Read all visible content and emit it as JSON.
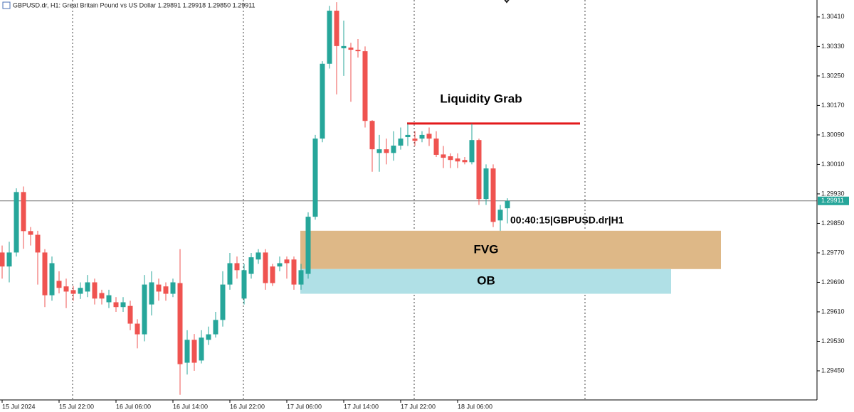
{
  "chart_data": {
    "type": "candlestick",
    "header": "GBPUSD.dr, H1:  Great Britain Pound vs US Dollar  1.29891 1.29918 1.29850 1.29911",
    "categories": [
      "15 Jul 2024",
      null,
      null,
      null,
      null,
      null,
      null,
      null,
      "15 Jul 22:00",
      null,
      null,
      null,
      null,
      null,
      null,
      null,
      "16 Jul 06:00",
      null,
      null,
      null,
      null,
      null,
      null,
      null,
      "16 Jul 14:00",
      null,
      null,
      null,
      null,
      null,
      null,
      null,
      "16 Jul 22:00",
      null,
      null,
      null,
      null,
      null,
      null,
      null,
      "17 Jul 06:00",
      null,
      null,
      null,
      null,
      null,
      null,
      null,
      "17 Jul 14:00",
      null,
      null,
      null,
      null,
      null,
      null,
      null,
      "17 Jul 22:00",
      null,
      null,
      null,
      null,
      null,
      null,
      null,
      "18 Jul 06:00",
      null,
      null,
      null,
      null,
      null,
      null,
      null
    ],
    "open": [
      1.29771,
      1.29733,
      1.29771,
      1.29935,
      1.29829,
      1.29819,
      1.29771,
      1.29655,
      1.29694,
      1.29679,
      1.29669,
      1.29659,
      1.29665,
      1.2969,
      1.29661,
      1.29636,
      1.29636,
      1.29623,
      1.29626,
      1.29578,
      1.29549,
      1.2963,
      1.29684,
      1.29679,
      1.29659,
      1.29688,
      1.29472,
      1.29534,
      1.29478,
      1.29534,
      1.29549,
      1.29588,
      1.29684,
      1.29742,
      1.29646,
      1.29713,
      1.29752,
      1.29771,
      1.29733,
      1.29733,
      1.29752,
      1.29752,
      1.29684,
      1.29713,
      1.29868,
      1.3008,
      1.30283,
      1.30427,
      1.30325,
      1.30327,
      1.30321,
      1.30317,
      1.30128,
      1.30041,
      1.30051,
      1.30041,
      1.30061,
      1.30084,
      1.3008,
      1.3008,
      1.30093,
      1.3008,
      1.30037,
      1.30032,
      1.30026,
      1.30022,
      1.30016,
      1.30076,
      1.29916,
      1.29999,
      1.29858,
      1.29891
    ],
    "high": [
      1.2979,
      1.298,
      1.29945,
      1.2995,
      1.2984,
      1.2983,
      1.2978,
      1.2976,
      1.2972,
      1.297,
      1.2968,
      1.2969,
      1.2971,
      1.297,
      1.2967,
      1.2967,
      1.2965,
      1.2965,
      1.2964,
      1.2959,
      1.2971,
      1.2972,
      1.297,
      1.2969,
      1.297,
      1.2978,
      1.2956,
      1.2955,
      1.2956,
      1.2957,
      1.2961,
      1.2972,
      1.2977,
      1.2976,
      1.2974,
      1.2977,
      1.2978,
      1.2978,
      1.2974,
      1.2976,
      1.2976,
      1.2976,
      1.2974,
      1.2988,
      1.3009,
      1.3029,
      1.3044,
      1.3045,
      1.304,
      1.3034,
      1.3035,
      1.3033,
      1.3013,
      1.3009,
      1.3008,
      1.301,
      1.3011,
      1.3012,
      1.301,
      1.301,
      1.3011,
      1.301,
      1.3006,
      1.3004,
      1.3004,
      1.3003,
      1.3012,
      1.3008,
      1.3001,
      1.3001,
      1.299,
      1.29918
    ],
    "low": [
      1.297,
      1.2969,
      1.2976,
      1.29781,
      1.2979,
      1.29684,
      1.29623,
      1.2964,
      1.2966,
      1.2962,
      1.2964,
      1.29645,
      1.2965,
      1.2963,
      1.2963,
      1.2962,
      1.2961,
      1.2961,
      1.2956,
      1.29511,
      1.2953,
      1.296,
      1.2964,
      1.2964,
      1.2965,
      1.29385,
      1.2944,
      1.2945,
      1.2947,
      1.2952,
      1.2954,
      1.2957,
      1.2967,
      1.297,
      1.2963,
      1.297,
      1.2974,
      1.2967,
      1.2968,
      1.2972,
      1.297,
      1.2967,
      1.2967,
      1.297,
      1.2986,
      1.3007,
      1.3027,
      1.302,
      1.3025,
      1.3018,
      1.303,
      1.3011,
      1.2999,
      1.2999,
      1.3001,
      1.3002,
      1.3005,
      1.3006,
      1.3006,
      1.3007,
      1.3006,
      1.3003,
      1.3,
      1.3,
      1.3,
      1.3001,
      1.3001,
      1.299,
      1.299,
      1.2984,
      1.2983,
      1.2985
    ],
    "close": [
      1.29733,
      1.29771,
      1.29935,
      1.29829,
      1.29819,
      1.29771,
      1.29655,
      1.29742,
      1.29675,
      1.29665,
      1.29659,
      1.29675,
      1.2969,
      1.29646,
      1.29646,
      1.29655,
      1.29623,
      1.29636,
      1.29578,
      1.29549,
      1.29684,
      1.2969,
      1.29665,
      1.29659,
      1.2969,
      1.29468,
      1.29534,
      1.29472,
      1.2954,
      1.29549,
      1.29588,
      1.29684,
      1.29742,
      1.29723,
      1.29723,
      1.29758,
      1.29771,
      1.29688,
      1.29688,
      1.29742,
      1.29742,
      1.29684,
      1.29723,
      1.29868,
      1.3008,
      1.30283,
      1.30427,
      1.30331,
      1.30331,
      1.30321,
      1.30317,
      1.30128,
      1.30051,
      1.30051,
      1.30041,
      1.30061,
      1.3008,
      1.3009,
      1.30074,
      1.3009,
      1.3008,
      1.30036,
      1.30028,
      1.30022,
      1.30018,
      1.30016,
      1.30076,
      1.29916,
      1.29999,
      1.29854,
      1.29887,
      1.29911
    ],
    "up_color": "#26a69a",
    "down_color": "#ef5350",
    "ylim": [
      1.29371,
      1.30456
    ],
    "yticks": [
      {
        "value": 1.3041,
        "label": "1.30410"
      },
      {
        "value": 1.3033,
        "label": "1.30330"
      },
      {
        "value": 1.3025,
        "label": "1.30250"
      },
      {
        "value": 1.3017,
        "label": "1.30170"
      },
      {
        "value": 1.3009,
        "label": "1.30090"
      },
      {
        "value": 1.3001,
        "label": "1.30010"
      },
      {
        "value": 1.2993,
        "label": "1.29930"
      },
      {
        "value": 1.2985,
        "label": "1.29850"
      },
      {
        "value": 1.2977,
        "label": "1.29770"
      },
      {
        "value": 1.2969,
        "label": "1.29690"
      },
      {
        "value": 1.2961,
        "label": "1.29610"
      },
      {
        "value": 1.2953,
        "label": "1.29530"
      },
      {
        "value": 1.2945,
        "label": "1.29450"
      }
    ],
    "current_price": 1.29911,
    "timer": "00:40:15|GBPUSD.dr|H1",
    "liquidity": {
      "label": "Liquidity Grab",
      "level": 1.30121,
      "color": "#e31a1c"
    },
    "zones": [
      {
        "label": "FVG",
        "top": 1.2983,
        "bottom": 1.29726,
        "color": "#deb887"
      },
      {
        "label": "OB",
        "top": 1.29726,
        "bottom": 1.29659,
        "color": "#b0e0e6"
      }
    ]
  }
}
